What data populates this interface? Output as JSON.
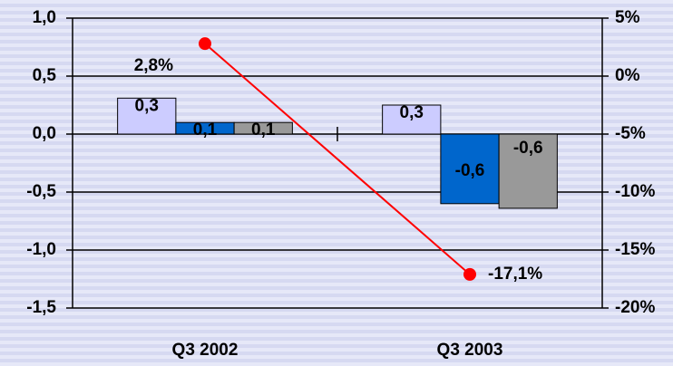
{
  "chart_data": {
    "type": "bar",
    "categories": [
      "Q3 2002",
      "Q3 2003"
    ],
    "series": [
      {
        "color": "#ccccff",
        "values": [
          0.31,
          0.25
        ],
        "value_labels": [
          "0,3",
          "0,3"
        ]
      },
      {
        "color": "#0066cc",
        "values": [
          0.1,
          -0.6
        ],
        "value_labels": [
          "0,1",
          "-0,6"
        ]
      },
      {
        "color": "#999999",
        "values": [
          0.1,
          -0.64
        ],
        "value_labels": [
          "0,1",
          "-0,6"
        ]
      },
      {
        "type": "line",
        "axis": "y2",
        "color": "#ff0000",
        "values": [
          2.8,
          -17.1
        ],
        "value_labels": [
          "2,8%",
          "-17,1%"
        ]
      }
    ],
    "ylim": [
      -1.5,
      1.0
    ],
    "yticks": [
      {
        "value": -1.5,
        "label": "-1,5"
      },
      {
        "value": -1.0,
        "label": "-1,0"
      },
      {
        "value": -0.5,
        "label": "-0,5"
      },
      {
        "value": 0.0,
        "label": "0,0"
      },
      {
        "value": 0.5,
        "label": "0,5"
      },
      {
        "value": 1.0,
        "label": "1,0"
      }
    ],
    "y2lim": [
      -20,
      5
    ],
    "y2ticks": [
      {
        "value": -20,
        "label": "-20%"
      },
      {
        "value": -15,
        "label": "-15%"
      },
      {
        "value": -10,
        "label": "-10%"
      },
      {
        "value": -5,
        "label": "-5%"
      },
      {
        "value": 0,
        "label": "0%"
      },
      {
        "value": 5,
        "label": "5%"
      }
    ],
    "grid": true
  }
}
